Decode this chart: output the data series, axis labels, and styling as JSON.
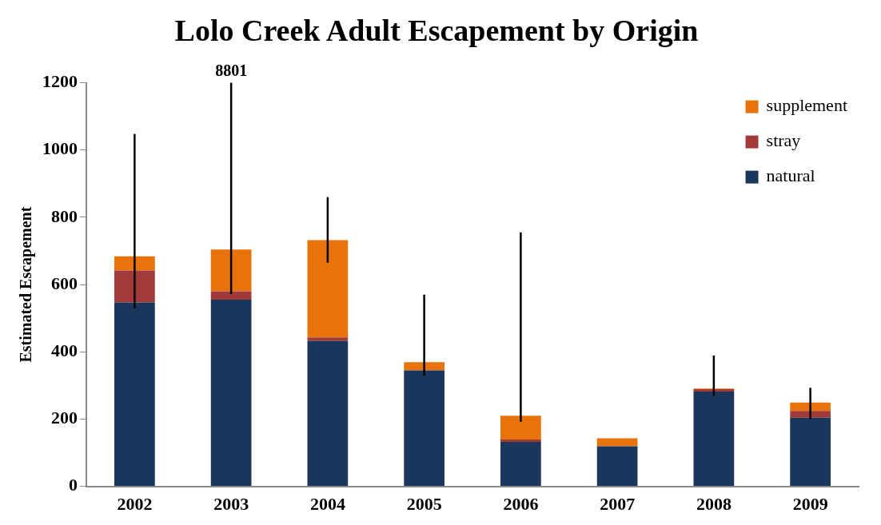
{
  "chart_data": {
    "type": "bar",
    "title": "Lolo Creek Adult Escapement by Origin",
    "ylabel": "Estimated Escapement",
    "categories": [
      "2002",
      "2003",
      "2004",
      "2005",
      "2006",
      "2007",
      "2008",
      "2009"
    ],
    "stacked": true,
    "series": [
      {
        "name": "natural",
        "color": "#1b365d",
        "values": [
          547,
          555,
          432,
          345,
          132,
          119,
          282,
          204
        ]
      },
      {
        "name": "stray",
        "color": "#a33a3a",
        "values": [
          95,
          25,
          11,
          0,
          7,
          0,
          7,
          20
        ]
      },
      {
        "name": "supplement",
        "color": "#e8720c",
        "values": [
          42,
          124,
          289,
          24,
          71,
          24,
          2,
          25
        ],
        "errors": [
          [
            530,
            1048
          ],
          [
            572,
            1200
          ],
          [
            665,
            860
          ],
          [
            329,
            570
          ],
          [
            192,
            755
          ],
          null,
          [
            269,
            389
          ],
          [
            200,
            293
          ]
        ]
      }
    ],
    "ylim": [
      0,
      1200
    ],
    "yticks": [
      0,
      200,
      400,
      600,
      800,
      1000,
      1200
    ],
    "grid": false,
    "legend": "top right",
    "annotations": [
      {
        "text": "8801",
        "x": "2003",
        "y": 1200
      }
    ]
  }
}
